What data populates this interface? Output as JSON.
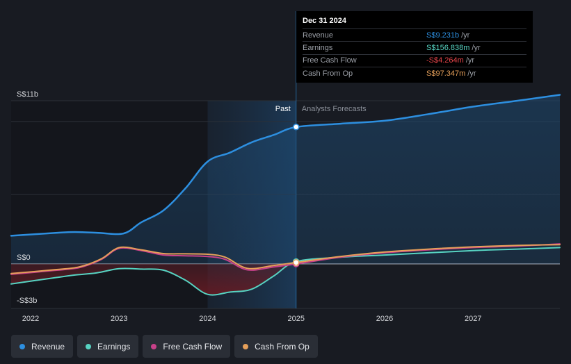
{
  "chart_data": {
    "type": "line",
    "title": "",
    "y_axis": {
      "min_label": "-S$3b",
      "zero_label": "S$0",
      "max_label": "S$11b",
      "ylim": [
        -3,
        11
      ]
    },
    "x_ticks": [
      "2022",
      "2023",
      "2024",
      "2025",
      "2026",
      "2027"
    ],
    "xlim": [
      2021.78,
      2027.98
    ],
    "divider_year": 2025.0,
    "past_region_start": 2024.0,
    "period_labels": {
      "past": "Past",
      "forecast": "Analysts Forecasts"
    },
    "series": [
      {
        "name": "Revenue",
        "color": "#2d8fe0",
        "fill": true,
        "points": [
          [
            2021.78,
            1.9
          ],
          [
            2022.3,
            2.1
          ],
          [
            2022.5,
            2.15
          ],
          [
            2022.75,
            2.1
          ],
          [
            2023.05,
            2.05
          ],
          [
            2023.25,
            2.8
          ],
          [
            2023.5,
            3.6
          ],
          [
            2023.75,
            5.1
          ],
          [
            2024.0,
            6.9
          ],
          [
            2024.25,
            7.5
          ],
          [
            2024.5,
            8.2
          ],
          [
            2024.75,
            8.7
          ],
          [
            2025.0,
            9.231
          ],
          [
            2025.5,
            9.45
          ],
          [
            2026.0,
            9.65
          ],
          [
            2026.5,
            10.1
          ],
          [
            2027.0,
            10.6
          ],
          [
            2027.5,
            11.0
          ],
          [
            2027.98,
            11.4
          ]
        ]
      },
      {
        "name": "Earnings",
        "color": "#57d3c2",
        "fill": true,
        "points": [
          [
            2021.78,
            -1.35
          ],
          [
            2022.25,
            -0.95
          ],
          [
            2022.5,
            -0.75
          ],
          [
            2022.75,
            -0.6
          ],
          [
            2023.0,
            -0.32
          ],
          [
            2023.25,
            -0.35
          ],
          [
            2023.5,
            -0.42
          ],
          [
            2023.75,
            -1.1
          ],
          [
            2024.0,
            -2.05
          ],
          [
            2024.25,
            -1.9
          ],
          [
            2024.5,
            -1.7
          ],
          [
            2024.75,
            -0.8
          ],
          [
            2025.0,
            0.157
          ],
          [
            2025.5,
            0.45
          ],
          [
            2026.0,
            0.6
          ],
          [
            2026.5,
            0.75
          ],
          [
            2027.0,
            0.9
          ],
          [
            2027.5,
            1.0
          ],
          [
            2027.98,
            1.1
          ]
        ]
      },
      {
        "name": "Free Cash Flow",
        "color": "#c8418a",
        "fill": false,
        "points": [
          [
            2021.78,
            -0.7
          ],
          [
            2022.25,
            -0.45
          ],
          [
            2022.55,
            -0.25
          ],
          [
            2022.8,
            0.3
          ],
          [
            2023.0,
            1.05
          ],
          [
            2023.25,
            0.9
          ],
          [
            2023.5,
            0.6
          ],
          [
            2023.75,
            0.55
          ],
          [
            2024.0,
            0.5
          ],
          [
            2024.2,
            0.3
          ],
          [
            2024.45,
            -0.4
          ],
          [
            2024.75,
            -0.2
          ],
          [
            2025.0,
            -0.004
          ],
          [
            2025.5,
            0.45
          ],
          [
            2026.0,
            0.75
          ],
          [
            2026.5,
            0.95
          ],
          [
            2027.0,
            1.1
          ],
          [
            2027.5,
            1.2
          ],
          [
            2027.98,
            1.35
          ]
        ]
      },
      {
        "name": "Cash From Op",
        "color": "#e6a05a",
        "fill": false,
        "points": [
          [
            2021.78,
            -0.65
          ],
          [
            2022.25,
            -0.4
          ],
          [
            2022.55,
            -0.2
          ],
          [
            2022.8,
            0.35
          ],
          [
            2023.0,
            1.1
          ],
          [
            2023.25,
            0.95
          ],
          [
            2023.5,
            0.7
          ],
          [
            2023.75,
            0.68
          ],
          [
            2024.0,
            0.65
          ],
          [
            2024.2,
            0.45
          ],
          [
            2024.45,
            -0.3
          ],
          [
            2024.75,
            -0.1
          ],
          [
            2025.0,
            0.097
          ],
          [
            2025.5,
            0.5
          ],
          [
            2026.0,
            0.8
          ],
          [
            2026.5,
            1.0
          ],
          [
            2027.0,
            1.15
          ],
          [
            2027.5,
            1.25
          ],
          [
            2027.98,
            1.3
          ]
        ]
      }
    ]
  },
  "tooltip": {
    "date": "Dec 31 2024",
    "rows": [
      {
        "label": "Revenue",
        "value": "S$9.231b",
        "unit": "/yr",
        "color": "#2d8fe0"
      },
      {
        "label": "Earnings",
        "value": "S$156.838m",
        "unit": "/yr",
        "color": "#57d3c2"
      },
      {
        "label": "Free Cash Flow",
        "value": "-S$4.264m",
        "unit": "/yr",
        "color": "#e8454a"
      },
      {
        "label": "Cash From Op",
        "value": "S$97.347m",
        "unit": "/yr",
        "color": "#e6a05a"
      }
    ]
  },
  "legend": [
    {
      "label": "Revenue",
      "color": "#2d8fe0"
    },
    {
      "label": "Earnings",
      "color": "#57d3c2"
    },
    {
      "label": "Free Cash Flow",
      "color": "#c8418a"
    },
    {
      "label": "Cash From Op",
      "color": "#e6a05a"
    }
  ]
}
